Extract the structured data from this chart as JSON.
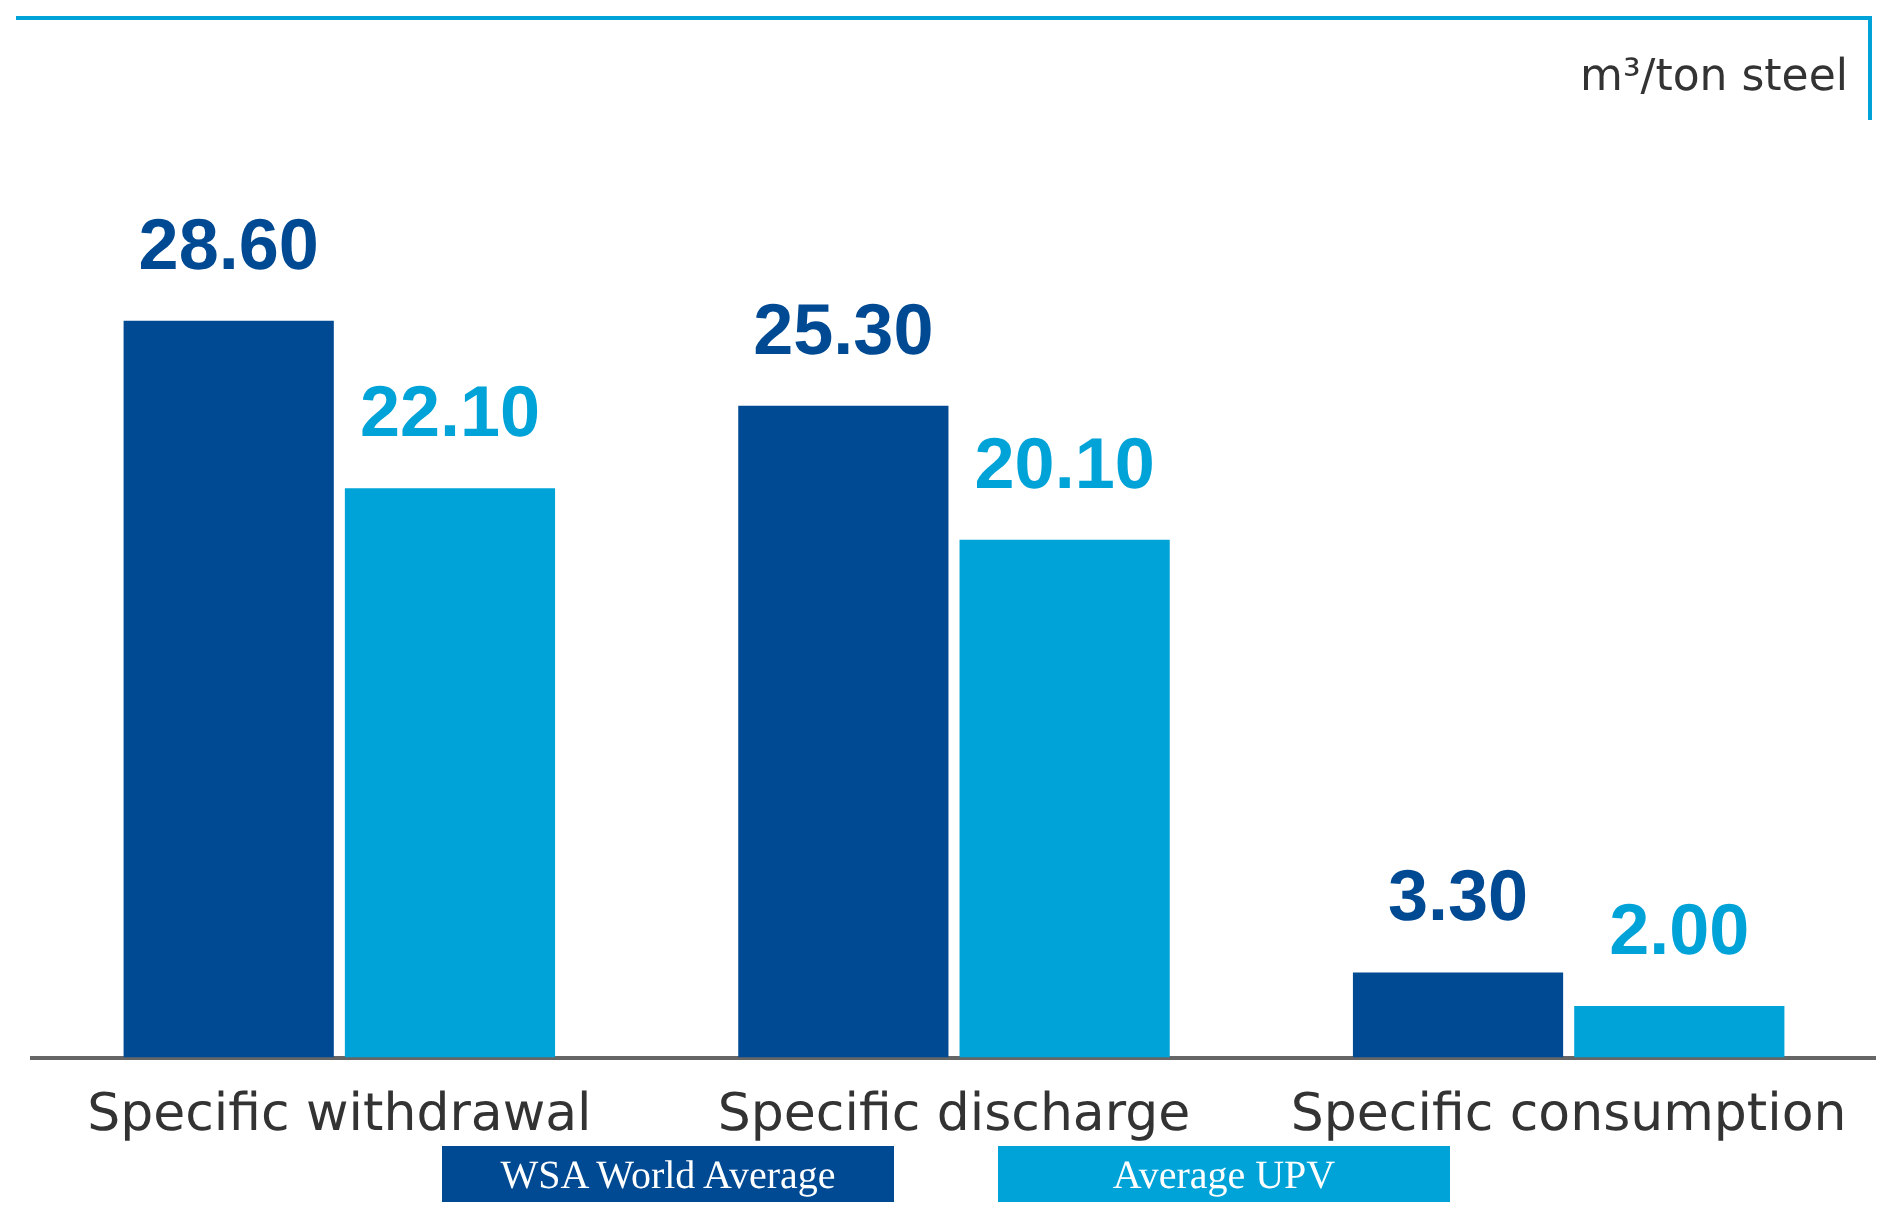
{
  "chart_data": {
    "type": "bar",
    "ylabel": "m³/ton steel",
    "categories": [
      "Specific withdrawal",
      "Specific discharge",
      "Specific consumption"
    ],
    "series": [
      {
        "name": "WSA World Average",
        "color": "#004a93",
        "values": [
          28.6,
          25.3,
          3.3
        ],
        "value_labels": [
          "28.60",
          "25.30",
          "3.30"
        ]
      },
      {
        "name": "Average UPV",
        "color": "#00a3d7",
        "values": [
          22.1,
          20.1,
          2.0
        ],
        "value_labels": [
          "22.10",
          "20.10",
          "2.00"
        ]
      }
    ],
    "relative": false,
    "grid": false,
    "legend": "bottom"
  }
}
